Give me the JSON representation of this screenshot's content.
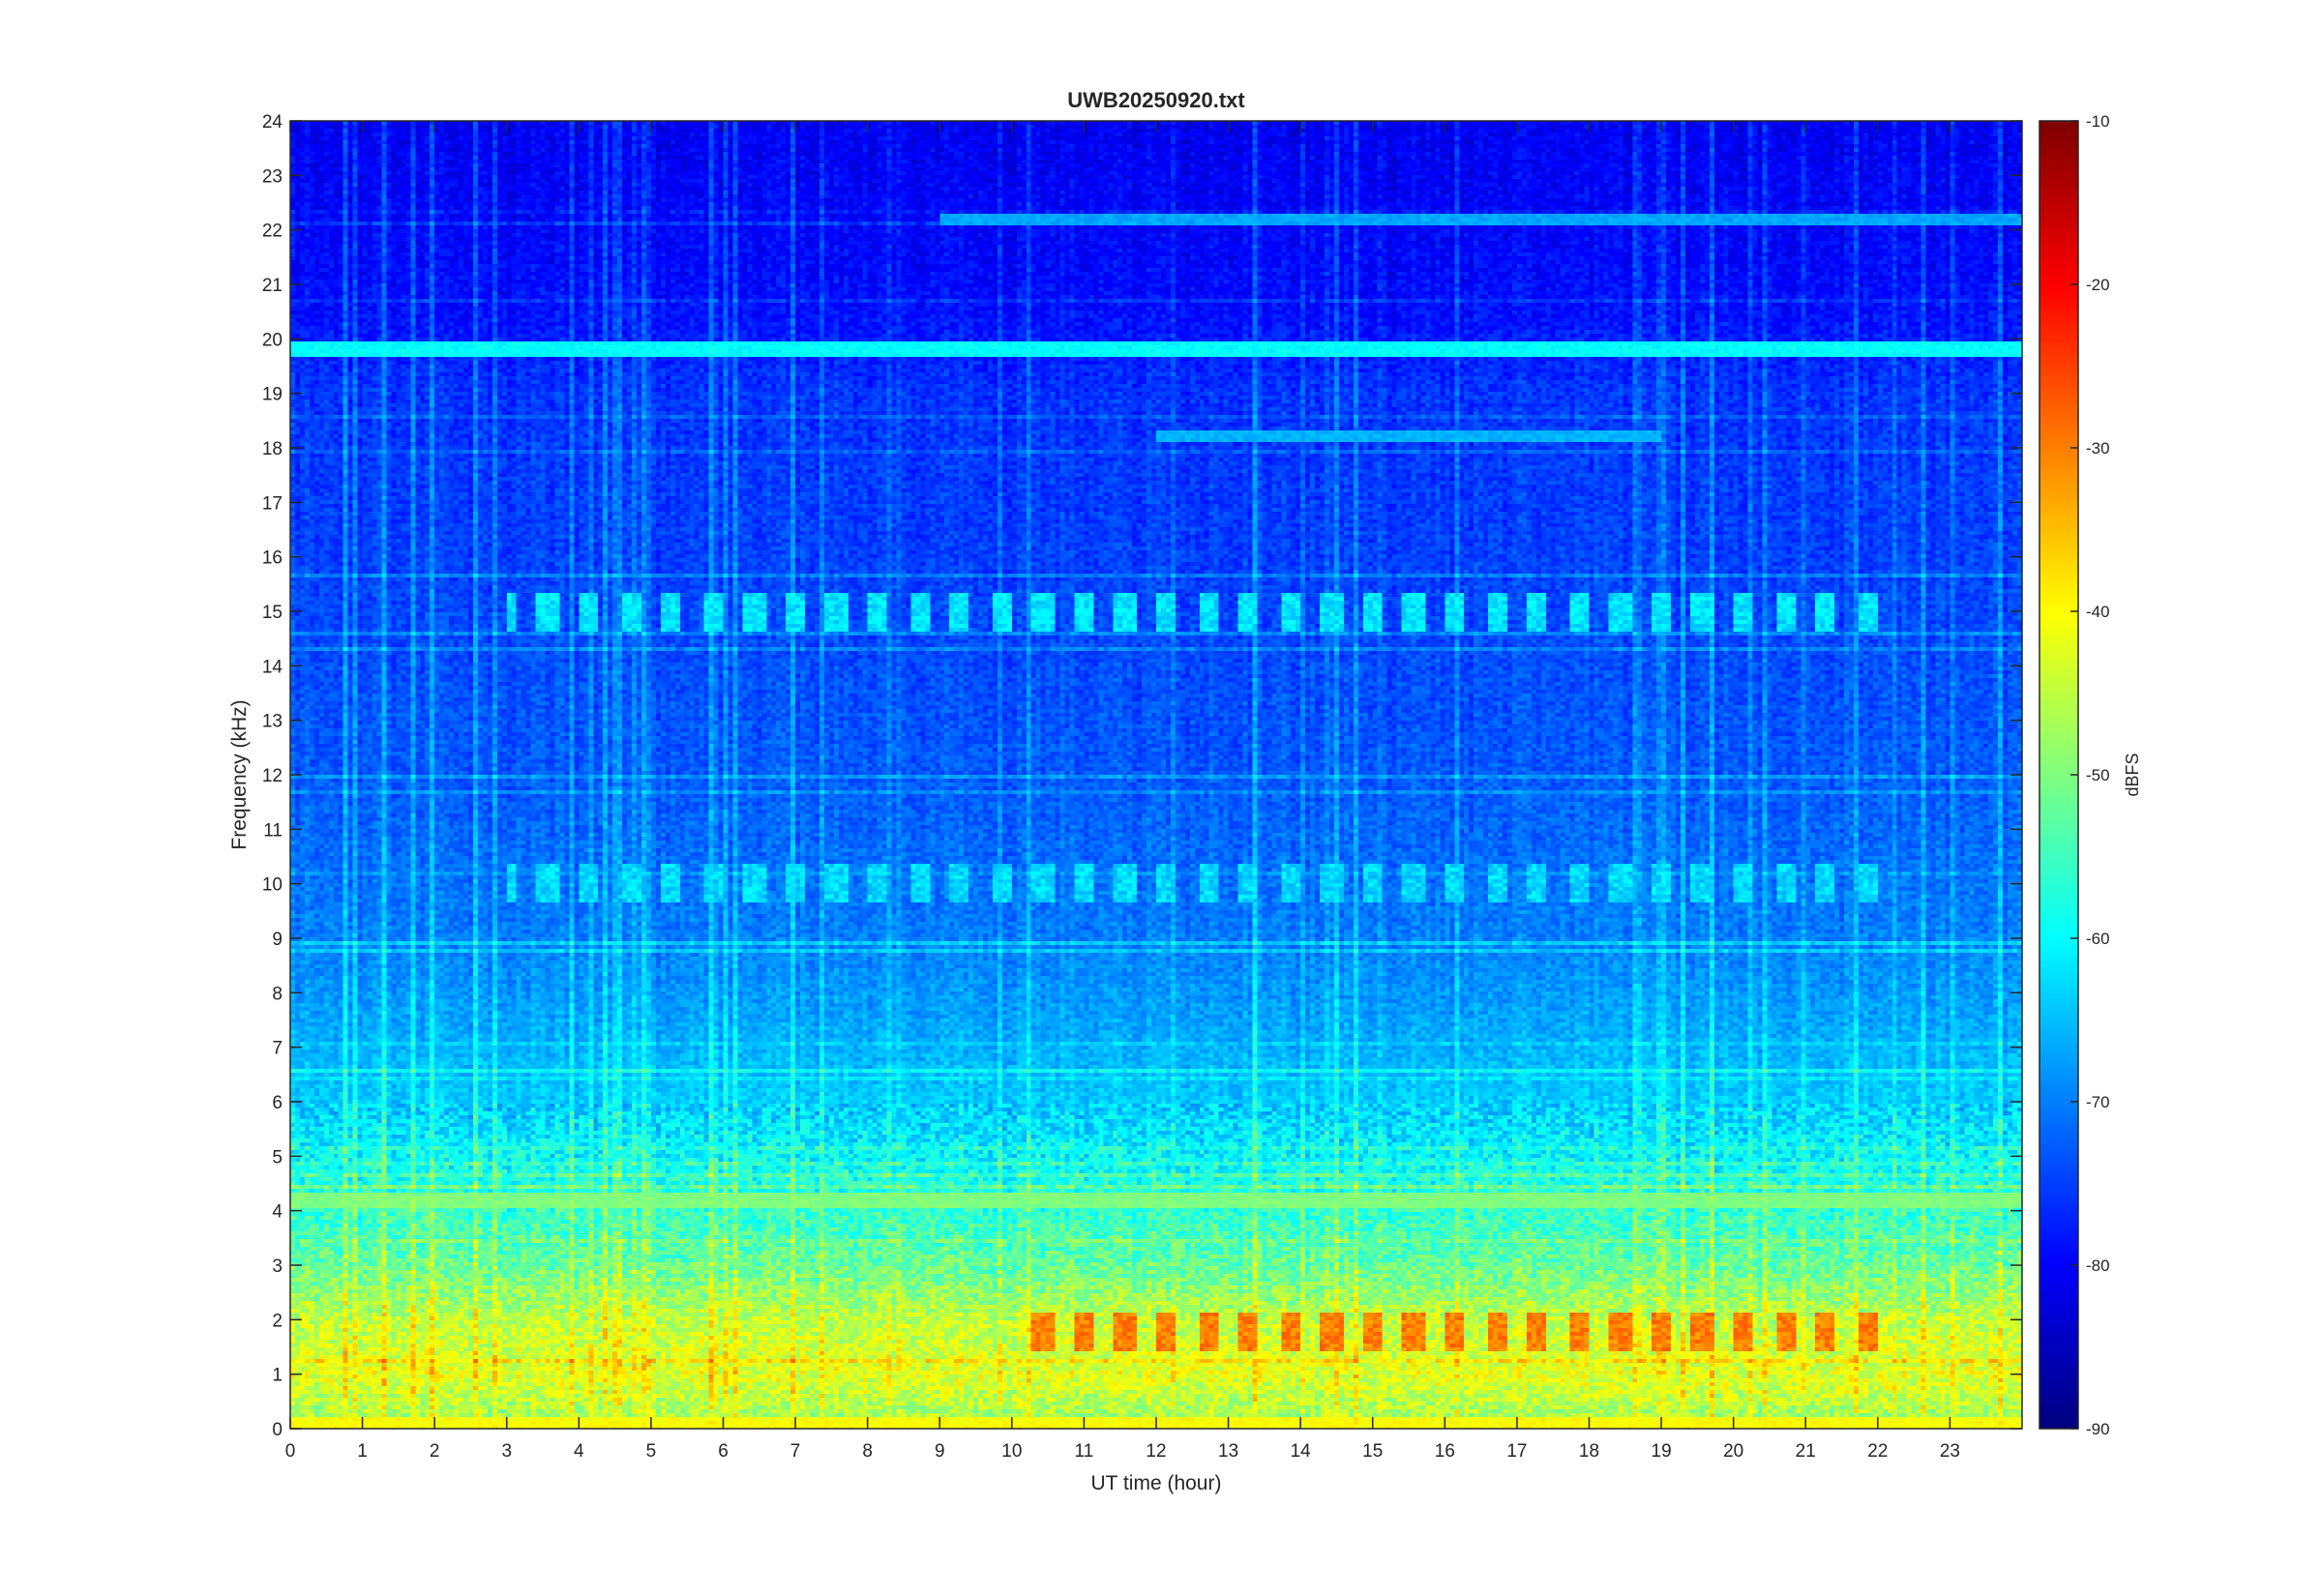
{
  "chart_data": {
    "type": "heatmap",
    "title": "UWB20250920.txt",
    "xlabel": "UT time (hour)",
    "ylabel": "Frequency (kHz)",
    "xlim": [
      0,
      24
    ],
    "ylim": [
      0,
      24
    ],
    "x_ticks": [
      "0",
      "1",
      "2",
      "3",
      "4",
      "5",
      "6",
      "7",
      "8",
      "9",
      "10",
      "11",
      "12",
      "13",
      "14",
      "15",
      "16",
      "17",
      "18",
      "19",
      "20",
      "21",
      "22",
      "23"
    ],
    "y_ticks": [
      "0",
      "1",
      "2",
      "3",
      "4",
      "5",
      "6",
      "7",
      "8",
      "9",
      "10",
      "11",
      "12",
      "13",
      "14",
      "15",
      "16",
      "17",
      "18",
      "19",
      "20",
      "21",
      "22",
      "23",
      "24"
    ],
    "colorbar": {
      "label": "dBFS",
      "colormap": "jet",
      "range": [
        -90,
        -10
      ],
      "ticks": [
        "-90",
        "-80",
        "-70",
        "-60",
        "-50",
        "-40",
        "-30",
        "-20",
        "-10"
      ]
    },
    "background_level_dbfs": [
      {
        "freq_khz": 0.1,
        "dbfs": -48
      },
      {
        "freq_khz": 1.0,
        "dbfs": -42
      },
      {
        "freq_khz": 2.0,
        "dbfs": -45
      },
      {
        "freq_khz": 3.0,
        "dbfs": -52
      },
      {
        "freq_khz": 4.0,
        "dbfs": -56
      },
      {
        "freq_khz": 5.0,
        "dbfs": -60
      },
      {
        "freq_khz": 6.0,
        "dbfs": -64
      },
      {
        "freq_khz": 7.0,
        "dbfs": -66
      },
      {
        "freq_khz": 8.0,
        "dbfs": -68
      },
      {
        "freq_khz": 9.0,
        "dbfs": -70
      },
      {
        "freq_khz": 12.0,
        "dbfs": -73
      },
      {
        "freq_khz": 16.0,
        "dbfs": -75
      },
      {
        "freq_khz": 19.0,
        "dbfs": -76
      },
      {
        "freq_khz": 20.5,
        "dbfs": -79
      },
      {
        "freq_khz": 22.0,
        "dbfs": -80
      },
      {
        "freq_khz": 24.0,
        "dbfs": -81
      }
    ],
    "persistent_lines": [
      {
        "freq_khz": 19.8,
        "dbfs": -60,
        "hours": [
          0,
          24
        ]
      },
      {
        "freq_khz": 18.2,
        "dbfs": -66,
        "hours": [
          12,
          19
        ]
      },
      {
        "freq_khz": 22.2,
        "dbfs": -67,
        "hours": [
          9,
          24
        ]
      },
      {
        "freq_khz": 4.2,
        "dbfs": -50,
        "hours": [
          0,
          24
        ]
      },
      {
        "freq_khz": 0.1,
        "dbfs": -40,
        "hours": [
          0,
          24
        ]
      }
    ],
    "intermittent_bands": [
      {
        "freq_khz": 15.0,
        "dbfs": -62,
        "hours": [
          3,
          22
        ]
      },
      {
        "freq_khz": 10.0,
        "dbfs": -63,
        "hours": [
          3,
          22
        ]
      },
      {
        "freq_khz": 1.8,
        "dbfs": -30,
        "hours": [
          10,
          22
        ]
      }
    ]
  }
}
